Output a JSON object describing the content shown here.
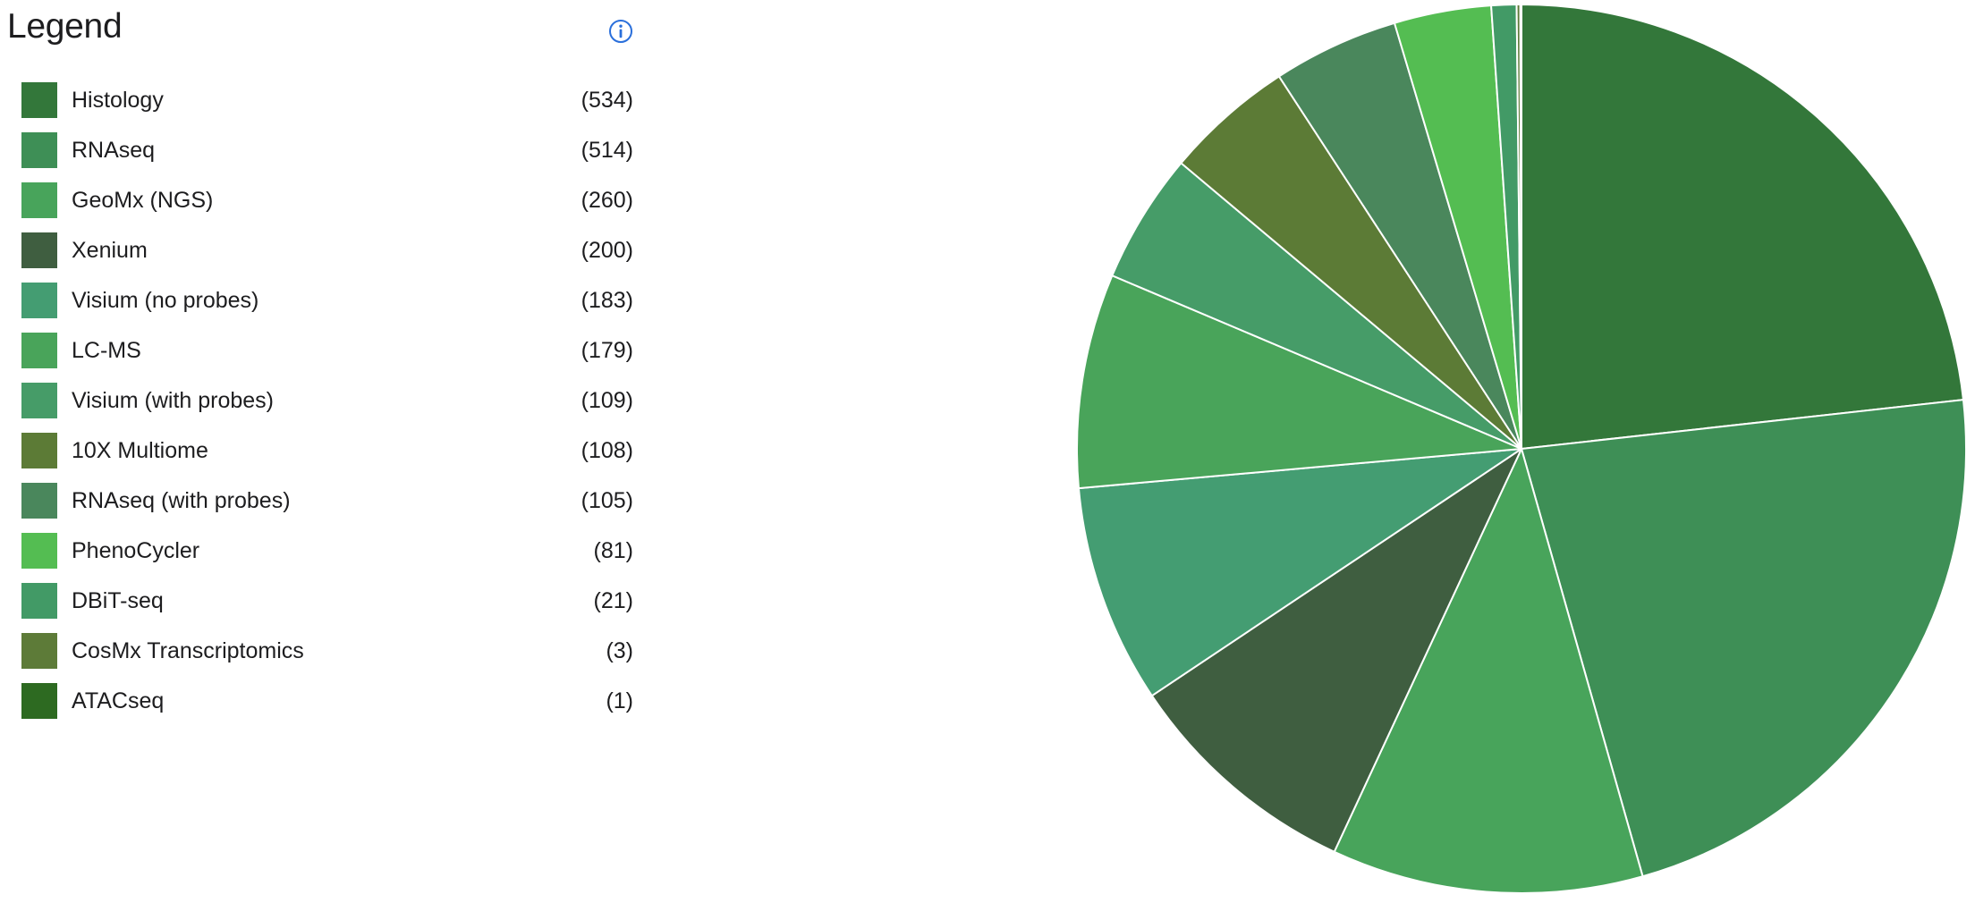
{
  "legend": {
    "title": "Legend",
    "info_icon": "info-circle-icon",
    "info_icon_color": "#2a6fdb"
  },
  "chart_data": {
    "type": "pie",
    "start_angle_deg": 0,
    "direction": "clockwise",
    "slice_border_color": "#ffffff",
    "series": [
      {
        "label": "Histology",
        "value": 534,
        "count_text": "(534)",
        "color": "#33773a"
      },
      {
        "label": "RNAseq",
        "value": 514,
        "count_text": "(514)",
        "color": "#3e8f56"
      },
      {
        "label": "GeoMx (NGS)",
        "value": 260,
        "count_text": "(260)",
        "color": "#48a45b"
      },
      {
        "label": "Xenium",
        "value": 200,
        "count_text": "(200)",
        "color": "#3f5e40"
      },
      {
        "label": "Visium (no probes)",
        "value": 183,
        "count_text": "(183)",
        "color": "#449d72"
      },
      {
        "label": "LC-MS",
        "value": 179,
        "count_text": "(179)",
        "color": "#49a45a"
      },
      {
        "label": "Visium (with probes)",
        "value": 109,
        "count_text": "(109)",
        "color": "#469c68"
      },
      {
        "label": "10X Multiome",
        "value": 108,
        "count_text": "(108)",
        "color": "#5c7b36"
      },
      {
        "label": "RNAseq (with probes)",
        "value": 105,
        "count_text": "(105)",
        "color": "#4a875c"
      },
      {
        "label": "PhenoCycler",
        "value": 81,
        "count_text": "(81)",
        "color": "#54bd52"
      },
      {
        "label": "DBiT-seq",
        "value": 21,
        "count_text": "(21)",
        "color": "#429a66"
      },
      {
        "label": "CosMx Transcriptomics",
        "value": 3,
        "count_text": "(3)",
        "color": "#5d7b38"
      },
      {
        "label": "ATACseq",
        "value": 1,
        "count_text": "(1)",
        "color": "#2d6a21"
      }
    ]
  }
}
